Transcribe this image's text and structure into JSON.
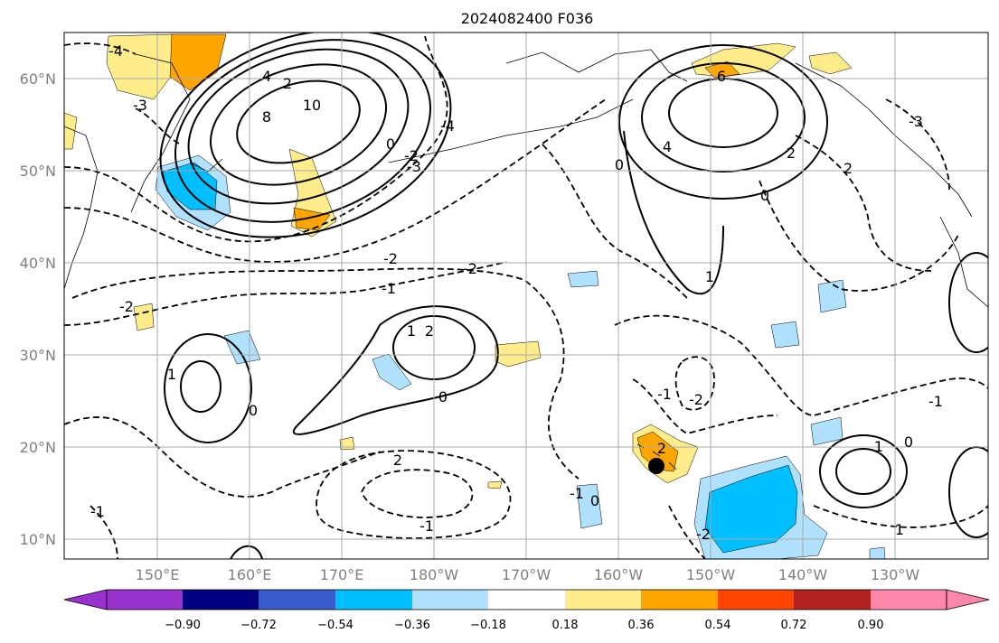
{
  "title": "2024082400 F036",
  "map": {
    "lat_range_deg": [
      8,
      65
    ],
    "lon_range_deg_east": [
      140,
      240
    ],
    "lat_labels": [
      "60°N",
      "50°N",
      "40°N",
      "30°N",
      "20°N",
      "10°N"
    ],
    "lon_labels": [
      "150°E",
      "160°E",
      "170°E",
      "180°W",
      "170°W",
      "160°W",
      "150°W",
      "140°W",
      "130°W"
    ],
    "grid": true,
    "marker": {
      "lon": 205,
      "lat": 18,
      "color": "#000000"
    }
  },
  "contour_labels": [
    {
      "text": "10"
    },
    {
      "text": "8"
    },
    {
      "text": "4"
    },
    {
      "text": "2"
    },
    {
      "text": "0"
    },
    {
      "text": "-2"
    },
    {
      "text": "-3"
    },
    {
      "text": "-4"
    },
    {
      "text": "-1"
    },
    {
      "text": "1"
    },
    {
      "text": "2"
    },
    {
      "text": "0"
    },
    {
      "text": "-2"
    },
    {
      "text": "-1"
    },
    {
      "text": "6"
    },
    {
      "text": "4"
    },
    {
      "text": "2"
    },
    {
      "text": "0"
    },
    {
      "text": "-3"
    },
    {
      "text": "2"
    },
    {
      "text": "1"
    },
    {
      "text": "0"
    },
    {
      "text": "-1"
    },
    {
      "text": "-2"
    },
    {
      "text": "1"
    },
    {
      "text": "0"
    },
    {
      "text": "-1"
    },
    {
      "text": "2"
    },
    {
      "text": "-2"
    },
    {
      "text": "-1"
    },
    {
      "text": "0"
    },
    {
      "text": "2"
    },
    {
      "text": "1"
    },
    {
      "text": "-2"
    },
    {
      "text": "-1"
    },
    {
      "text": "0"
    },
    {
      "text": "1"
    },
    {
      "text": "-4"
    },
    {
      "text": "-3"
    },
    {
      "text": "-2"
    }
  ],
  "colorbar": {
    "ticks": [
      "−0.90",
      "−0.72",
      "−0.54",
      "−0.36",
      "−0.18",
      "0.18",
      "0.36",
      "0.54",
      "0.72",
      "0.90"
    ],
    "colors": [
      "#9932cc",
      "#000080",
      "#3a5bcb",
      "#00bfff",
      "#b0e2ff",
      "#ffffff",
      "#ffec8b",
      "#ffa500",
      "#ff4500",
      "#b22222",
      "#ff88aa"
    ]
  }
}
